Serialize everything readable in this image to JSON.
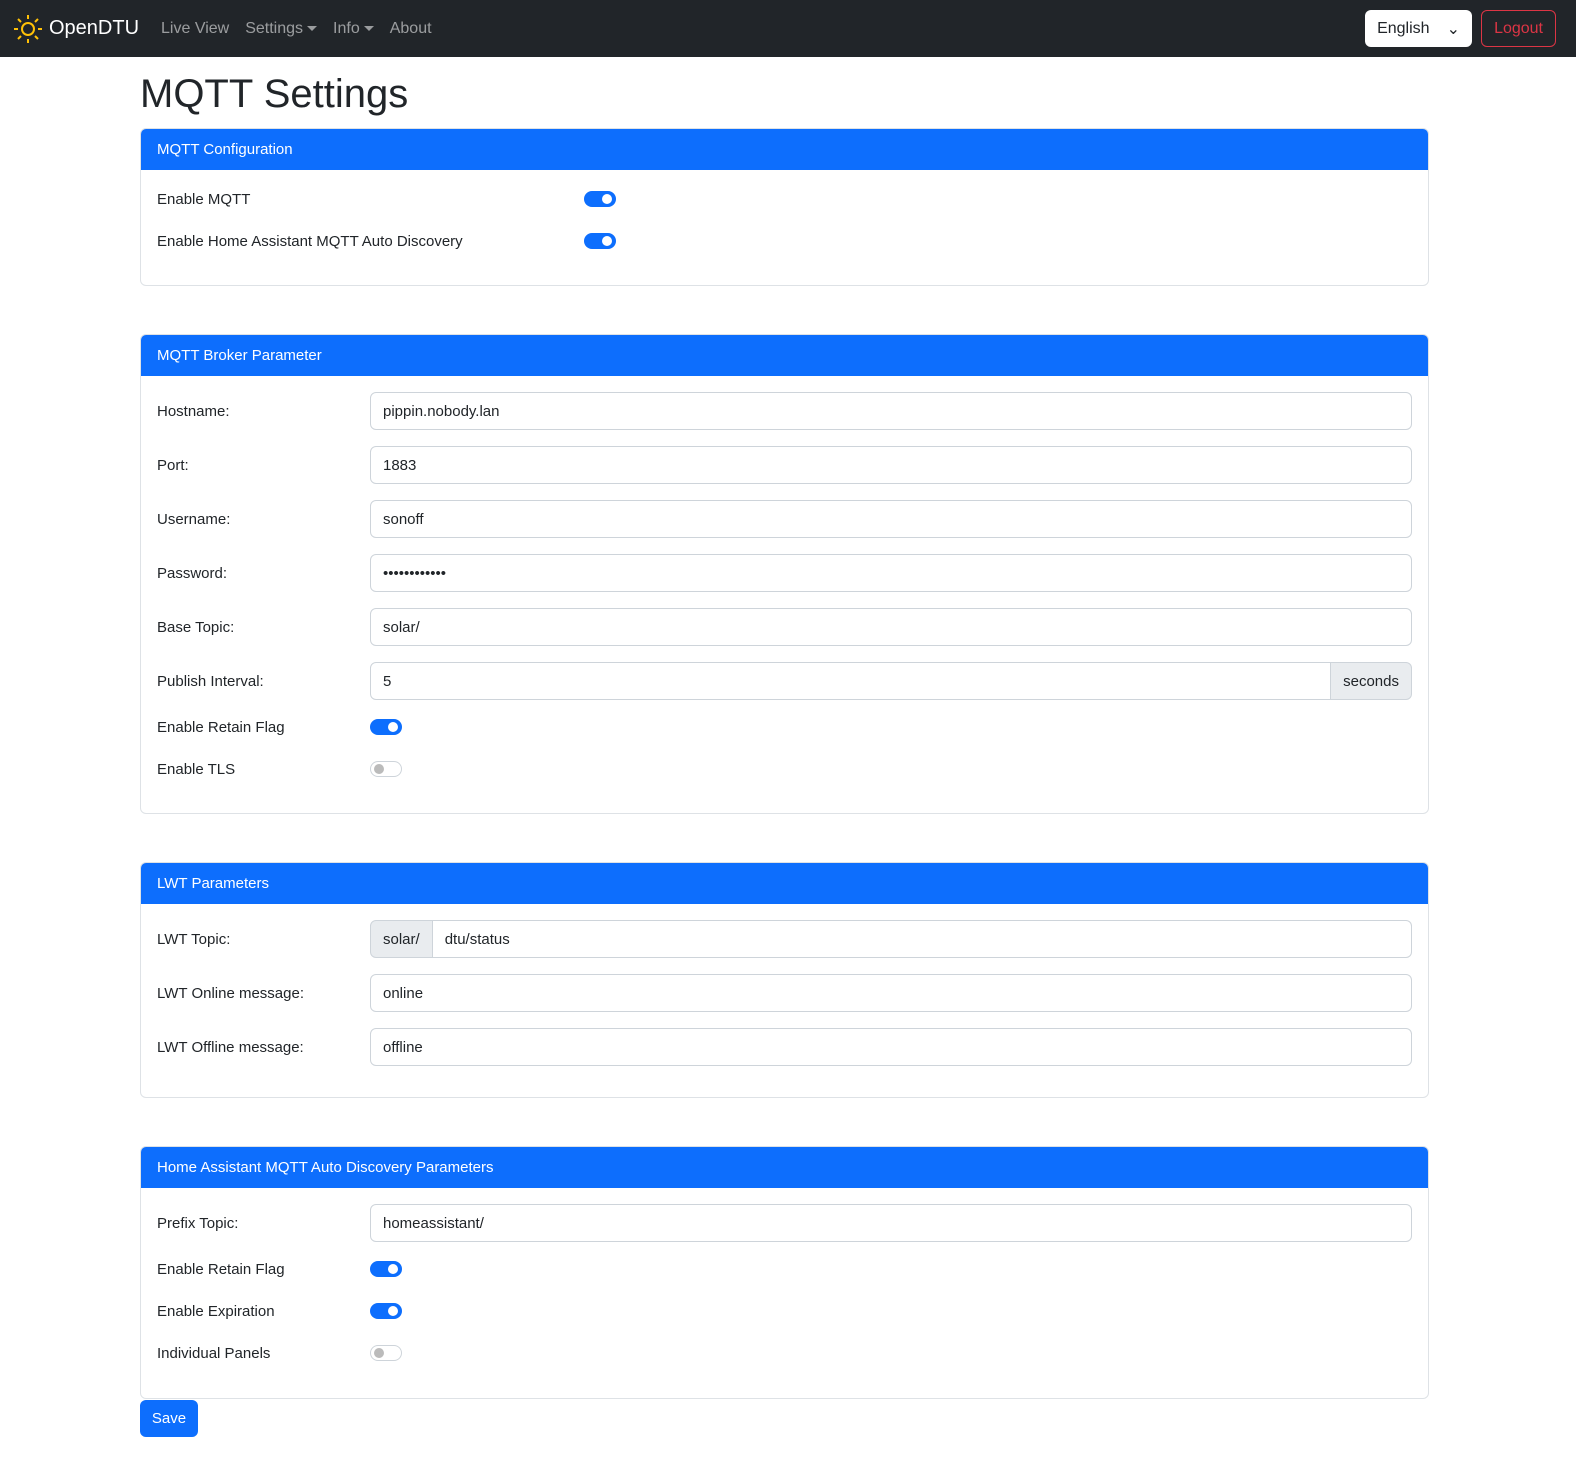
{
  "nav": {
    "brand": "OpenDTU",
    "links": [
      "Live View",
      "Settings",
      "Info",
      "About"
    ],
    "language": "English",
    "logout": "Logout"
  },
  "title": "MQTT Settings",
  "config": {
    "header": "MQTT Configuration",
    "enable_mqtt": {
      "label": "Enable MQTT",
      "on": true
    },
    "enable_ha": {
      "label": "Enable Home Assistant MQTT Auto Discovery",
      "on": true
    }
  },
  "broker": {
    "header": "MQTT Broker Parameter",
    "hostname": {
      "label": "Hostname:",
      "value": "pippin.nobody.lan"
    },
    "port": {
      "label": "Port:",
      "value": "1883"
    },
    "username": {
      "label": "Username:",
      "value": "sonoff"
    },
    "password": {
      "label": "Password:",
      "value": "••••••••••••"
    },
    "base_topic": {
      "label": "Base Topic:",
      "value": "solar/"
    },
    "interval": {
      "label": "Publish Interval:",
      "value": "5",
      "unit": "seconds"
    },
    "retain": {
      "label": "Enable Retain Flag",
      "on": true
    },
    "tls": {
      "label": "Enable TLS",
      "on": false
    }
  },
  "lwt": {
    "header": "LWT Parameters",
    "topic": {
      "label": "LWT Topic:",
      "prefix": "solar/",
      "value": "dtu/status"
    },
    "online": {
      "label": "LWT Online message:",
      "value": "online"
    },
    "offline": {
      "label": "LWT Offline message:",
      "value": "offline"
    }
  },
  "ha": {
    "header": "Home Assistant MQTT Auto Discovery Parameters",
    "prefix": {
      "label": "Prefix Topic:",
      "value": "homeassistant/"
    },
    "retain": {
      "label": "Enable Retain Flag",
      "on": true
    },
    "expiration": {
      "label": "Enable Expiration",
      "on": true
    },
    "panels": {
      "label": "Individual Panels",
      "on": false
    }
  },
  "save": "Save"
}
